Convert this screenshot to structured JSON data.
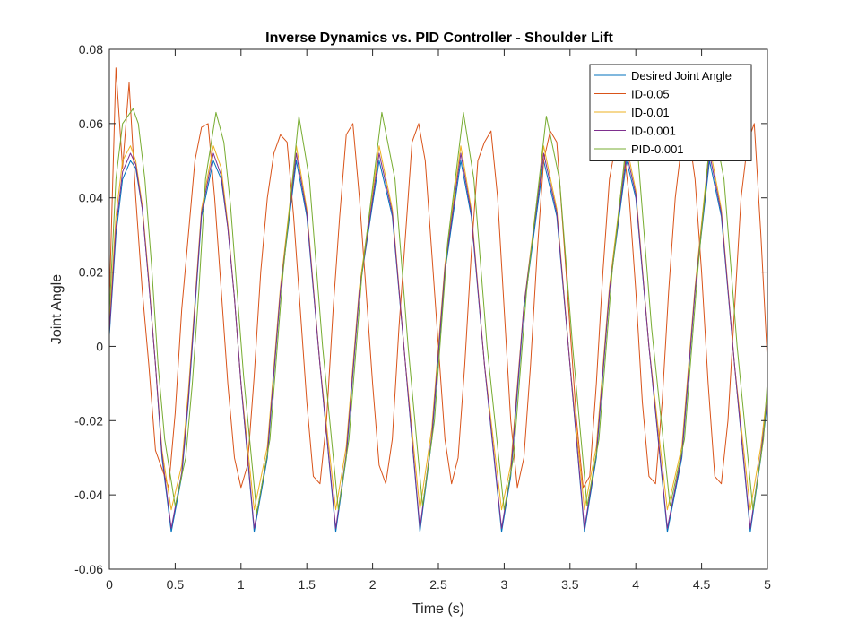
{
  "chart_data": {
    "type": "line",
    "title": "Inverse Dynamics vs. PID Controller - Shoulder Lift",
    "xlabel": "Time (s)",
    "ylabel": "Joint Angle",
    "xlim": [
      0,
      5
    ],
    "ylim": [
      -0.06,
      0.08
    ],
    "xticks": [
      0,
      0.5,
      1,
      1.5,
      2,
      2.5,
      3,
      3.5,
      4,
      4.5,
      5
    ],
    "xtick_labels": [
      "0",
      "0.5",
      "1",
      "1.5",
      "2",
      "2.5",
      "3",
      "3.5",
      "4",
      "4.5",
      "5"
    ],
    "yticks": [
      -0.06,
      -0.04,
      -0.02,
      0,
      0.02,
      0.04,
      0.06,
      0.08
    ],
    "ytick_labels": [
      "-0.06",
      "-0.04",
      "-0.02",
      "0",
      "0.02",
      "0.04",
      "0.06",
      "0.08"
    ],
    "grid": false,
    "legend_position": "top-right",
    "series": [
      {
        "name": "Desired Joint Angle",
        "color": "#0072BD",
        "x": [
          0,
          0.05,
          0.1,
          0.16,
          0.2,
          0.25,
          0.3,
          0.35,
          0.4,
          0.47,
          0.55,
          0.6,
          0.65,
          0.7,
          0.79,
          0.85,
          0.9,
          0.95,
          1.0,
          1.1,
          1.2,
          1.3,
          1.42,
          1.5,
          1.6,
          1.72,
          1.8,
          1.9,
          2.05,
          2.15,
          2.25,
          2.36,
          2.45,
          2.55,
          2.67,
          2.75,
          2.85,
          2.98,
          3.05,
          3.15,
          3.3,
          3.4,
          3.5,
          3.61,
          3.7,
          3.8,
          3.93,
          4.0,
          4.1,
          4.24,
          4.35,
          4.45,
          4.56,
          4.65,
          4.75,
          4.87,
          4.95,
          5.0
        ],
        "y": [
          0.003,
          0.03,
          0.045,
          0.05,
          0.048,
          0.037,
          0.017,
          -0.005,
          -0.03,
          -0.05,
          -0.035,
          -0.015,
          0.01,
          0.035,
          0.05,
          0.045,
          0.032,
          0.013,
          -0.01,
          -0.05,
          -0.03,
          0.015,
          0.05,
          0.035,
          -0.005,
          -0.05,
          -0.03,
          0.015,
          0.05,
          0.035,
          -0.005,
          -0.05,
          -0.025,
          0.02,
          0.05,
          0.035,
          -0.005,
          -0.05,
          -0.035,
          0.01,
          0.05,
          0.035,
          -0.005,
          -0.05,
          -0.03,
          0.015,
          0.05,
          0.04,
          0.0,
          -0.05,
          -0.03,
          0.015,
          0.05,
          0.035,
          -0.005,
          -0.05,
          -0.03,
          -0.015
        ]
      },
      {
        "name": "ID-0.05",
        "color": "#D95319",
        "x": [
          0,
          0.05,
          0.1,
          0.15,
          0.2,
          0.25,
          0.3,
          0.35,
          0.45,
          0.5,
          0.55,
          0.6,
          0.65,
          0.7,
          0.75,
          0.8,
          0.85,
          0.9,
          0.95,
          1.0,
          1.05,
          1.1,
          1.15,
          1.2,
          1.25,
          1.3,
          1.35,
          1.4,
          1.45,
          1.5,
          1.55,
          1.6,
          1.65,
          1.7,
          1.75,
          1.8,
          1.85,
          1.9,
          1.95,
          2.0,
          2.05,
          2.1,
          2.15,
          2.2,
          2.25,
          2.3,
          2.35,
          2.4,
          2.45,
          2.5,
          2.55,
          2.6,
          2.65,
          2.7,
          2.75,
          2.8,
          2.85,
          2.9,
          2.95,
          3.0,
          3.05,
          3.1,
          3.15,
          3.2,
          3.25,
          3.3,
          3.35,
          3.4,
          3.45,
          3.5,
          3.55,
          3.6,
          3.65,
          3.7,
          3.75,
          3.8,
          3.85,
          3.9,
          3.95,
          4.0,
          4.05,
          4.1,
          4.15,
          4.2,
          4.25,
          4.3,
          4.35,
          4.4,
          4.45,
          4.5,
          4.55,
          4.6,
          4.65,
          4.7,
          4.75,
          4.8,
          4.85,
          4.9,
          4.95,
          5.0
        ],
        "y": [
          0.012,
          0.075,
          0.048,
          0.071,
          0.04,
          0.015,
          -0.005,
          -0.028,
          -0.038,
          -0.018,
          0.01,
          0.03,
          0.05,
          0.059,
          0.06,
          0.04,
          0.015,
          -0.01,
          -0.03,
          -0.038,
          -0.032,
          -0.008,
          0.02,
          0.04,
          0.052,
          0.057,
          0.055,
          0.035,
          0.01,
          -0.015,
          -0.035,
          -0.037,
          -0.02,
          0.01,
          0.035,
          0.057,
          0.06,
          0.04,
          0.015,
          -0.01,
          -0.032,
          -0.037,
          -0.025,
          0.005,
          0.03,
          0.055,
          0.06,
          0.05,
          0.025,
          0.0,
          -0.025,
          -0.037,
          -0.03,
          -0.005,
          0.025,
          0.05,
          0.055,
          0.058,
          0.04,
          0.01,
          -0.02,
          -0.038,
          -0.03,
          -0.005,
          0.025,
          0.05,
          0.058,
          0.055,
          0.03,
          0.005,
          -0.02,
          -0.038,
          -0.035,
          -0.01,
          0.02,
          0.045,
          0.055,
          0.056,
          0.04,
          0.015,
          -0.015,
          -0.035,
          -0.037,
          -0.015,
          0.015,
          0.04,
          0.055,
          0.058,
          0.045,
          0.02,
          -0.01,
          -0.035,
          -0.037,
          -0.02,
          0.01,
          0.04,
          0.055,
          0.06,
          0.03,
          -0.004
        ]
      },
      {
        "name": "ID-0.01",
        "color": "#EDB120",
        "x": [
          0,
          0.05,
          0.1,
          0.16,
          0.2,
          0.25,
          0.3,
          0.35,
          0.4,
          0.47,
          0.55,
          0.6,
          0.65,
          0.7,
          0.79,
          0.85,
          0.9,
          0.95,
          1.0,
          1.1,
          1.2,
          1.3,
          1.42,
          1.5,
          1.6,
          1.72,
          1.8,
          1.9,
          2.05,
          2.15,
          2.25,
          2.36,
          2.45,
          2.55,
          2.67,
          2.75,
          2.85,
          2.98,
          3.05,
          3.15,
          3.3,
          3.4,
          3.5,
          3.61,
          3.7,
          3.8,
          3.93,
          4.0,
          4.1,
          4.24,
          4.35,
          4.45,
          4.56,
          4.65,
          4.75,
          4.87,
          4.95,
          5.0
        ],
        "y": [
          0.006,
          0.035,
          0.05,
          0.054,
          0.05,
          0.038,
          0.018,
          -0.005,
          -0.028,
          -0.044,
          -0.032,
          -0.012,
          0.012,
          0.037,
          0.054,
          0.048,
          0.033,
          0.013,
          -0.01,
          -0.044,
          -0.027,
          0.016,
          0.054,
          0.037,
          -0.005,
          -0.044,
          -0.027,
          0.016,
          0.054,
          0.037,
          -0.005,
          -0.044,
          -0.022,
          0.022,
          0.054,
          0.037,
          -0.005,
          -0.044,
          -0.032,
          0.011,
          0.054,
          0.037,
          -0.005,
          -0.044,
          -0.027,
          0.016,
          0.054,
          0.042,
          0.0,
          -0.044,
          -0.027,
          0.016,
          0.054,
          0.037,
          -0.005,
          -0.044,
          -0.027,
          -0.012
        ]
      },
      {
        "name": "ID-0.001",
        "color": "#7E2F8E",
        "x": [
          0,
          0.05,
          0.1,
          0.16,
          0.2,
          0.25,
          0.3,
          0.35,
          0.4,
          0.47,
          0.55,
          0.6,
          0.65,
          0.7,
          0.79,
          0.85,
          0.9,
          0.95,
          1.0,
          1.1,
          1.2,
          1.3,
          1.42,
          1.5,
          1.6,
          1.72,
          1.8,
          1.9,
          2.05,
          2.15,
          2.25,
          2.36,
          2.45,
          2.55,
          2.67,
          2.75,
          2.85,
          2.98,
          3.05,
          3.15,
          3.3,
          3.4,
          3.5,
          3.61,
          3.7,
          3.8,
          3.93,
          4.0,
          4.1,
          4.24,
          4.35,
          4.45,
          4.56,
          4.65,
          4.75,
          4.87,
          4.95,
          5.0
        ],
        "y": [
          0.004,
          0.032,
          0.047,
          0.052,
          0.049,
          0.037,
          0.017,
          -0.005,
          -0.029,
          -0.049,
          -0.034,
          -0.014,
          0.011,
          0.036,
          0.052,
          0.046,
          0.032,
          0.013,
          -0.01,
          -0.049,
          -0.029,
          0.015,
          0.052,
          0.036,
          -0.005,
          -0.049,
          -0.029,
          0.015,
          0.052,
          0.036,
          -0.005,
          -0.049,
          -0.024,
          0.021,
          0.052,
          0.036,
          -0.005,
          -0.049,
          -0.034,
          0.011,
          0.052,
          0.036,
          -0.005,
          -0.049,
          -0.029,
          0.015,
          0.052,
          0.041,
          0.0,
          -0.049,
          -0.029,
          0.015,
          0.052,
          0.036,
          -0.005,
          -0.049,
          -0.029,
          -0.014
        ]
      },
      {
        "name": "PID-0.001",
        "color": "#77AC30",
        "x": [
          0,
          0.05,
          0.1,
          0.18,
          0.22,
          0.27,
          0.32,
          0.37,
          0.42,
          0.5,
          0.58,
          0.63,
          0.68,
          0.73,
          0.81,
          0.87,
          0.92,
          0.97,
          1.02,
          1.12,
          1.22,
          1.32,
          1.44,
          1.52,
          1.62,
          1.74,
          1.82,
          1.92,
          2.07,
          2.17,
          2.27,
          2.38,
          2.47,
          2.57,
          2.69,
          2.77,
          2.87,
          3.0,
          3.07,
          3.17,
          3.32,
          3.42,
          3.52,
          3.63,
          3.72,
          3.82,
          3.95,
          4.02,
          4.12,
          4.26,
          4.37,
          4.47,
          4.58,
          4.67,
          4.77,
          4.89,
          4.97,
          5.0
        ],
        "y": [
          0.009,
          0.045,
          0.06,
          0.064,
          0.06,
          0.045,
          0.022,
          -0.005,
          -0.025,
          -0.043,
          -0.03,
          -0.01,
          0.015,
          0.045,
          0.063,
          0.055,
          0.038,
          0.015,
          -0.008,
          -0.045,
          -0.025,
          0.02,
          0.062,
          0.045,
          0.0,
          -0.044,
          -0.025,
          0.02,
          0.063,
          0.045,
          0.0,
          -0.043,
          -0.02,
          0.028,
          0.063,
          0.045,
          0.0,
          -0.044,
          -0.03,
          0.015,
          0.062,
          0.045,
          0.0,
          -0.043,
          -0.025,
          0.02,
          0.062,
          0.05,
          0.005,
          -0.043,
          -0.025,
          0.02,
          0.062,
          0.045,
          0.0,
          -0.044,
          -0.025,
          -0.009
        ]
      }
    ]
  }
}
